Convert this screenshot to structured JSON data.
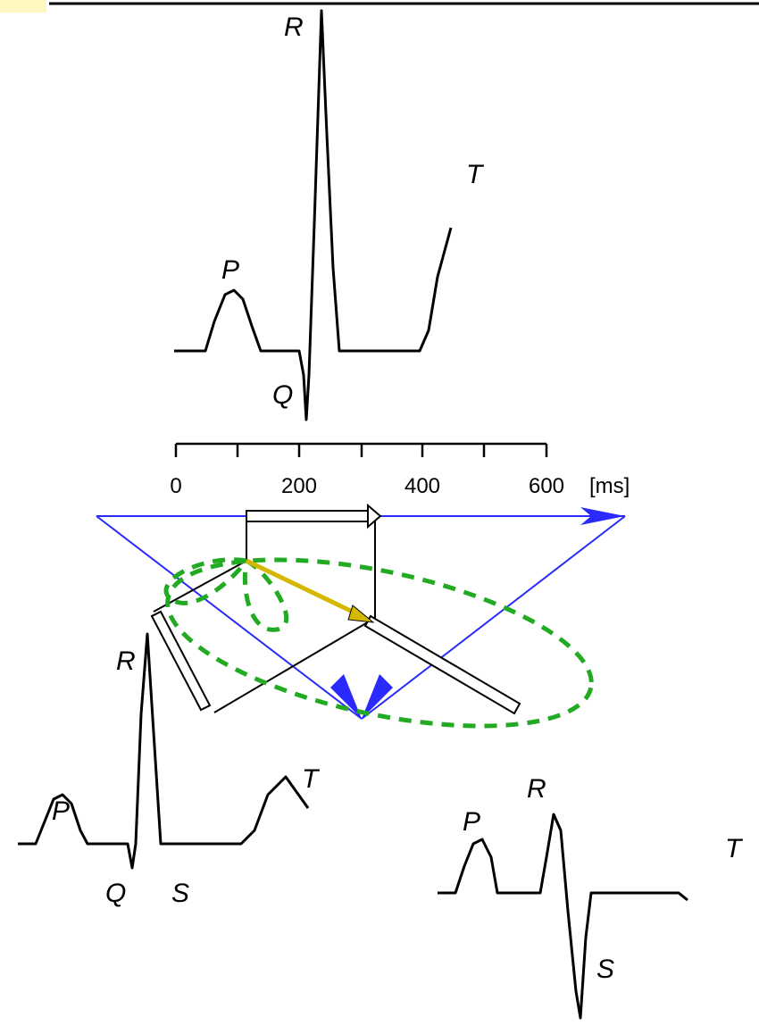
{
  "top_trace": {
    "r": "R",
    "t": "T",
    "p": "P",
    "q": "Q"
  },
  "time_scale": {
    "ticks": [
      "0",
      "200",
      "400",
      "600"
    ],
    "unit": "[ms]"
  },
  "left_trace": {
    "r": "R",
    "t": "T",
    "p": "P",
    "q": "Q",
    "s": "S"
  },
  "right_trace": {
    "r": "R",
    "t": "T",
    "p": "P",
    "s": "S"
  }
}
